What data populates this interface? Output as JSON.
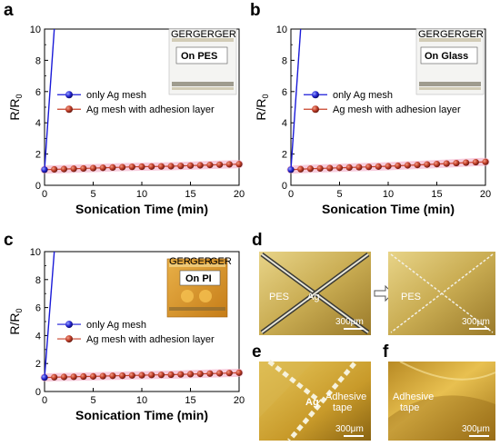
{
  "panel_labels": {
    "a": "a",
    "b": "b",
    "c": "c",
    "d": "d",
    "e": "e",
    "f": "f"
  },
  "chart_data": [
    {
      "type": "line",
      "panel": "a",
      "inset_label": "On PES",
      "xlabel": "Sonication Time (min)",
      "ylabel_main": "R/R",
      "ylabel_sub": "0",
      "xlim": [
        0,
        20
      ],
      "ylim": [
        0,
        10
      ],
      "xticks": [
        0,
        5,
        10,
        15,
        20
      ],
      "yticks": [
        0,
        2,
        4,
        6,
        8,
        10
      ],
      "legend_position": "center-left",
      "series": [
        {
          "name": "only Ag mesh",
          "color": "#1a1ad8",
          "x": [
            0,
            0.5,
            1
          ],
          "y": [
            1,
            5.5,
            10
          ]
        },
        {
          "name": "Ag mesh with adhesion layer",
          "color": "#c8402a",
          "x": [
            0,
            1,
            2,
            3,
            4,
            5,
            6,
            7,
            8,
            9,
            10,
            11,
            12,
            13,
            14,
            15,
            16,
            17,
            18,
            19,
            20
          ],
          "y": [
            1.0,
            1.02,
            1.04,
            1.06,
            1.08,
            1.1,
            1.12,
            1.14,
            1.16,
            1.18,
            1.19,
            1.2,
            1.21,
            1.22,
            1.24,
            1.26,
            1.28,
            1.3,
            1.32,
            1.34,
            1.35
          ]
        }
      ]
    },
    {
      "type": "line",
      "panel": "b",
      "inset_label": "On Glass",
      "xlabel": "Sonication Time (min)",
      "ylabel_main": "R/R",
      "ylabel_sub": "0",
      "xlim": [
        0,
        20
      ],
      "ylim": [
        0,
        10
      ],
      "xticks": [
        0,
        5,
        10,
        15,
        20
      ],
      "yticks": [
        0,
        2,
        4,
        6,
        8,
        10
      ],
      "legend_position": "center-left",
      "series": [
        {
          "name": "only Ag mesh",
          "color": "#1a1ad8",
          "x": [
            0,
            0.5,
            1
          ],
          "y": [
            1,
            5.5,
            10
          ]
        },
        {
          "name": "Ag mesh with adhesion layer",
          "color": "#c8402a",
          "x": [
            0,
            1,
            2,
            3,
            4,
            5,
            6,
            7,
            8,
            9,
            10,
            11,
            12,
            13,
            14,
            15,
            16,
            17,
            18,
            19,
            20
          ],
          "y": [
            1.0,
            1.03,
            1.06,
            1.08,
            1.1,
            1.12,
            1.14,
            1.16,
            1.18,
            1.2,
            1.22,
            1.25,
            1.28,
            1.3,
            1.33,
            1.36,
            1.39,
            1.42,
            1.45,
            1.48,
            1.5
          ]
        }
      ]
    },
    {
      "type": "line",
      "panel": "c",
      "inset_label": "On PI",
      "xlabel": "Sonication Time (min)",
      "ylabel_main": "R/R",
      "ylabel_sub": "0",
      "xlim": [
        0,
        20
      ],
      "ylim": [
        0,
        10
      ],
      "xticks": [
        0,
        5,
        10,
        15,
        20
      ],
      "yticks": [
        0,
        2,
        4,
        6,
        8,
        10
      ],
      "legend_position": "center-left",
      "series": [
        {
          "name": "only Ag mesh",
          "color": "#1a1ad8",
          "x": [
            0,
            0.5,
            1
          ],
          "y": [
            1,
            5.5,
            10
          ]
        },
        {
          "name": "Ag mesh with adhesion layer",
          "color": "#c8402a",
          "x": [
            0,
            1,
            2,
            3,
            4,
            5,
            6,
            7,
            8,
            9,
            10,
            11,
            12,
            13,
            14,
            15,
            16,
            17,
            18,
            19,
            20
          ],
          "y": [
            1.0,
            1.02,
            1.04,
            1.05,
            1.07,
            1.08,
            1.1,
            1.12,
            1.13,
            1.15,
            1.16,
            1.18,
            1.19,
            1.2,
            1.22,
            1.24,
            1.26,
            1.28,
            1.3,
            1.32,
            1.34
          ]
        }
      ]
    }
  ],
  "micrographs": {
    "d_left": {
      "label_substrate": "PES",
      "label_metal": "Ag",
      "scale": "300μm"
    },
    "d_right": {
      "label_substrate": "PES",
      "scale": "300μm"
    },
    "e": {
      "label_metal": "Ag",
      "label_tape": "Adhesive\ntape",
      "label_tape_l1": "Adhesive",
      "label_tape_l2": "tape",
      "scale": "300μm"
    },
    "f": {
      "label_tape_l1": "Adhesive",
      "label_tape_l2": "tape",
      "scale": "300μm"
    }
  },
  "inset_logo_text": "GER"
}
